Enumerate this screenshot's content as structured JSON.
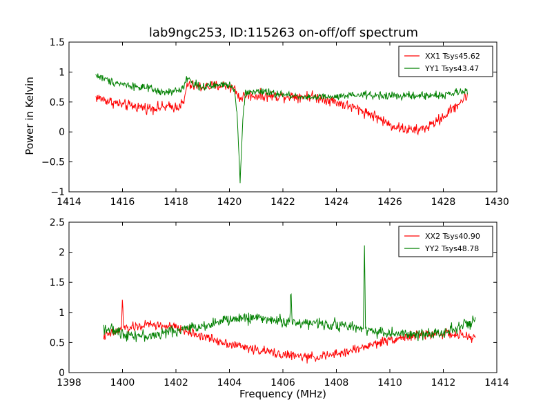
{
  "figure": {
    "title": "lab9ngc253, ID:115263 on-off/off spectrum",
    "ylabel": "Power in Kelvin",
    "xlabel": "Frequency (MHz)"
  },
  "chart_data": [
    {
      "type": "line",
      "xlim": [
        1414,
        1430
      ],
      "ylim": [
        -1.0,
        1.5
      ],
      "xticks": [
        1414,
        1416,
        1418,
        1420,
        1422,
        1424,
        1426,
        1428,
        1430
      ],
      "yticks": [
        -1.0,
        -0.5,
        0.0,
        0.5,
        1.0,
        1.5
      ],
      "legend_position": "top-right",
      "x_start": 1415.0,
      "x_end": 1428.9,
      "series": [
        {
          "name": "XX1 Tsys45.62",
          "color": "#ff0000",
          "noise": 0.07,
          "anchors": [
            [
              1415.0,
              0.58
            ],
            [
              1416.0,
              0.45
            ],
            [
              1417.0,
              0.4
            ],
            [
              1418.0,
              0.42
            ],
            [
              1418.3,
              0.48
            ],
            [
              1418.4,
              0.78
            ],
            [
              1419.0,
              0.75
            ],
            [
              1419.8,
              0.78
            ],
            [
              1420.2,
              0.72
            ],
            [
              1420.4,
              0.55
            ],
            [
              1420.6,
              0.62
            ],
            [
              1421.0,
              0.6
            ],
            [
              1422.0,
              0.6
            ],
            [
              1423.0,
              0.6
            ],
            [
              1423.6,
              0.55
            ],
            [
              1424.0,
              0.5
            ],
            [
              1425.0,
              0.35
            ],
            [
              1425.5,
              0.25
            ],
            [
              1426.0,
              0.12
            ],
            [
              1426.5,
              0.05
            ],
            [
              1427.0,
              0.02
            ],
            [
              1427.5,
              0.1
            ],
            [
              1428.0,
              0.25
            ],
            [
              1428.5,
              0.45
            ],
            [
              1428.9,
              0.6
            ]
          ]
        },
        {
          "name": "YY1 Tsys43.47",
          "color": "#008000",
          "noise": 0.05,
          "anchors": [
            [
              1415.0,
              0.95
            ],
            [
              1415.5,
              0.85
            ],
            [
              1416.0,
              0.8
            ],
            [
              1417.0,
              0.72
            ],
            [
              1417.5,
              0.65
            ],
            [
              1418.0,
              0.68
            ],
            [
              1418.3,
              0.75
            ],
            [
              1418.4,
              0.92
            ],
            [
              1418.6,
              0.82
            ],
            [
              1419.0,
              0.75
            ],
            [
              1420.0,
              0.8
            ],
            [
              1420.2,
              0.7
            ],
            [
              1420.3,
              0.2
            ],
            [
              1420.4,
              -0.8
            ],
            [
              1420.5,
              0.2
            ],
            [
              1420.6,
              0.65
            ],
            [
              1421.0,
              0.68
            ],
            [
              1422.0,
              0.62
            ],
            [
              1423.0,
              0.58
            ],
            [
              1424.0,
              0.58
            ],
            [
              1425.0,
              0.62
            ],
            [
              1426.0,
              0.6
            ],
            [
              1427.0,
              0.6
            ],
            [
              1428.0,
              0.62
            ],
            [
              1428.9,
              0.68
            ]
          ]
        }
      ]
    },
    {
      "type": "line",
      "xlim": [
        1398,
        1414
      ],
      "ylim": [
        0.0,
        2.5
      ],
      "xticks": [
        1398,
        1400,
        1402,
        1404,
        1406,
        1408,
        1410,
        1412,
        1414
      ],
      "yticks": [
        0.0,
        0.5,
        1.0,
        1.5,
        2.0,
        2.5
      ],
      "legend_position": "top-right",
      "x_start": 1399.3,
      "x_end": 1413.2,
      "series": [
        {
          "name": "XX2 Tsys40.90",
          "color": "#ff0000",
          "noise": 0.06,
          "anchors": [
            [
              1399.3,
              0.6
            ],
            [
              1400.0,
              0.72
            ],
            [
              1401.0,
              0.8
            ],
            [
              1402.0,
              0.75
            ],
            [
              1403.0,
              0.6
            ],
            [
              1404.0,
              0.48
            ],
            [
              1405.0,
              0.38
            ],
            [
              1406.0,
              0.3
            ],
            [
              1407.0,
              0.25
            ],
            [
              1408.0,
              0.3
            ],
            [
              1409.0,
              0.42
            ],
            [
              1410.0,
              0.55
            ],
            [
              1411.0,
              0.62
            ],
            [
              1412.0,
              0.65
            ],
            [
              1413.2,
              0.58
            ]
          ],
          "spikes": [
            [
              1400.0,
              1.28
            ]
          ]
        },
        {
          "name": "YY2 Tsys48.78",
          "color": "#008000",
          "noise": 0.07,
          "anchors": [
            [
              1399.3,
              0.75
            ],
            [
              1400.0,
              0.65
            ],
            [
              1401.0,
              0.6
            ],
            [
              1402.0,
              0.7
            ],
            [
              1403.0,
              0.78
            ],
            [
              1404.0,
              0.88
            ],
            [
              1405.0,
              0.92
            ],
            [
              1406.0,
              0.85
            ],
            [
              1407.0,
              0.82
            ],
            [
              1408.0,
              0.8
            ],
            [
              1409.0,
              0.72
            ],
            [
              1410.0,
              0.65
            ],
            [
              1411.0,
              0.62
            ],
            [
              1412.0,
              0.68
            ],
            [
              1413.2,
              0.85
            ]
          ],
          "spikes": [
            [
              1406.3,
              1.45
            ],
            [
              1409.05,
              2.12
            ]
          ]
        }
      ]
    }
  ]
}
